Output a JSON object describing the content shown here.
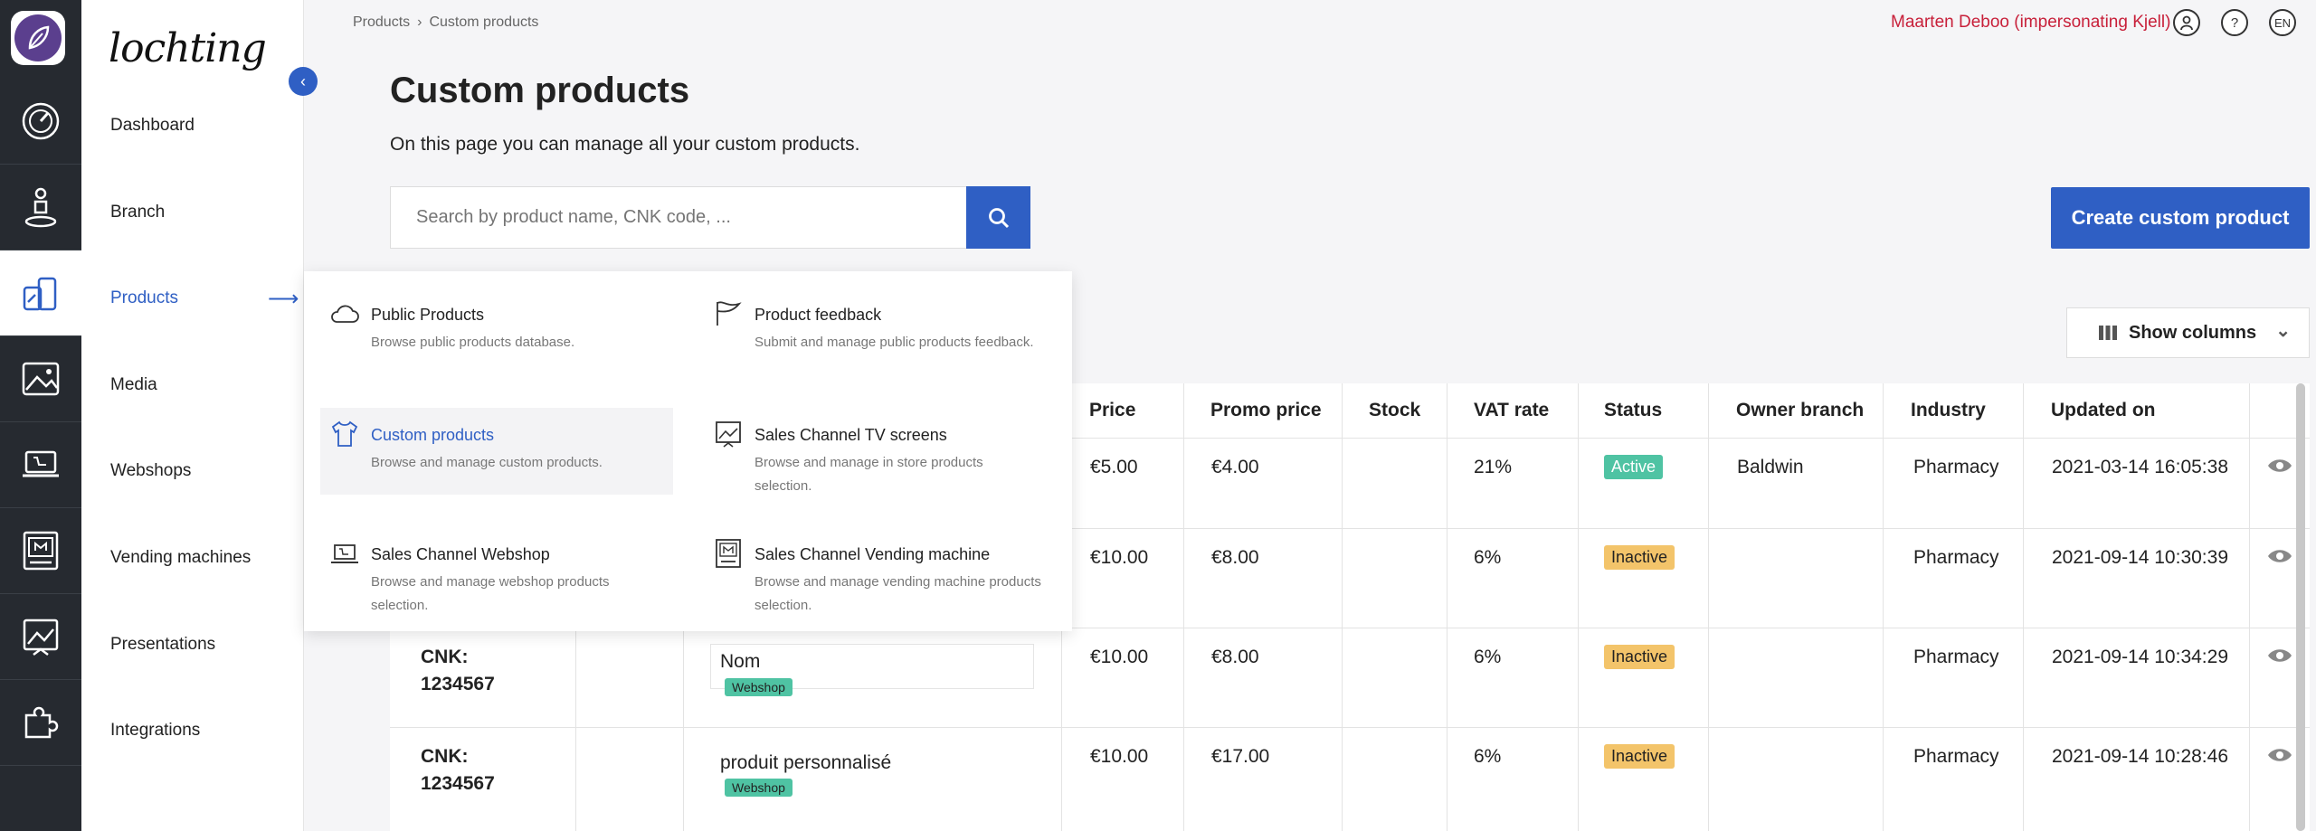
{
  "brand": "lochting",
  "breadcrumb": {
    "root": "Products",
    "separator": "›",
    "current": "Custom products"
  },
  "header": {
    "user": "Maarten Deboo (impersonating Kjell)",
    "help": "?",
    "language": "EN"
  },
  "sidebar": {
    "items": [
      {
        "label": "Dashboard",
        "icon": "gauge-icon"
      },
      {
        "label": "Branch",
        "icon": "person-pin-icon"
      },
      {
        "label": "Products",
        "icon": "products-icon",
        "active": true
      },
      {
        "label": "Media",
        "icon": "image-icon"
      },
      {
        "label": "Webshops",
        "icon": "laptop-cart-icon"
      },
      {
        "label": "Vending machines",
        "icon": "vending-icon"
      },
      {
        "label": "Presentations",
        "icon": "presentation-icon"
      },
      {
        "label": "Integrations",
        "icon": "puzzle-icon"
      }
    ]
  },
  "page": {
    "title": "Custom products",
    "subtitle": "On this page you can manage all your custom products.",
    "search_placeholder": "Search by product name, CNK code, ...",
    "create_button": "Create custom product",
    "show_columns": "Show columns"
  },
  "menu": {
    "items": [
      {
        "title": "Public Products",
        "desc": "Browse public products database.",
        "icon": "cloud-icon"
      },
      {
        "title": "Product feedback",
        "desc": "Submit and manage public products feedback.",
        "icon": "flag-icon"
      },
      {
        "title": "Custom products",
        "desc": "Browse and manage custom products.",
        "icon": "shirt-icon",
        "active": true
      },
      {
        "title": "Sales Channel TV screens",
        "desc": "Browse and manage in store products selection.",
        "icon": "tv-screen-icon"
      },
      {
        "title": "Sales Channel Webshop",
        "desc": "Browse and manage webshop products selection.",
        "icon": "laptop-icon"
      },
      {
        "title": "Sales Channel Vending machine",
        "desc": "Browse and manage vending machine products selection.",
        "icon": "vending-machine-icon"
      }
    ]
  },
  "table": {
    "columns": [
      "Price",
      "Promo price",
      "Stock",
      "VAT rate",
      "Status",
      "Owner branch",
      "Industry",
      "Updated on"
    ],
    "rows": [
      {
        "cnk_label": "",
        "cnk_value": "",
        "name": "",
        "tag": "",
        "price": "€5.00",
        "promo": "€4.00",
        "stock": "",
        "vat": "21%",
        "status": "Active",
        "owner": "Baldwin",
        "industry": "Pharmacy",
        "updated": "2021-03-14 16:05:38"
      },
      {
        "cnk_label": "",
        "cnk_value": "",
        "name": "",
        "tag": "",
        "price": "€10.00",
        "promo": "€8.00",
        "stock": "",
        "vat": "6%",
        "status": "Inactive",
        "owner": "",
        "industry": "Pharmacy",
        "updated": "2021-09-14 10:30:39"
      },
      {
        "cnk_label": "CNK:",
        "cnk_value": "1234567",
        "name": "Nom",
        "tag": "Webshop",
        "price": "€10.00",
        "promo": "€8.00",
        "stock": "",
        "vat": "6%",
        "status": "Inactive",
        "owner": "",
        "industry": "Pharmacy",
        "updated": "2021-09-14 10:34:29"
      },
      {
        "cnk_label": "CNK:",
        "cnk_value": "1234567",
        "name": "produit personnalisé",
        "tag": "Webshop",
        "price": "€10.00",
        "promo": "€17.00",
        "stock": "",
        "vat": "6%",
        "status": "Inactive",
        "owner": "",
        "industry": "Pharmacy",
        "updated": "2021-09-14 10:28:46"
      }
    ]
  },
  "colors": {
    "accent": "#2f5fc4",
    "active_badge": "#4fc3a3",
    "inactive_badge": "#f3c46a",
    "user_text": "#c8203a"
  }
}
